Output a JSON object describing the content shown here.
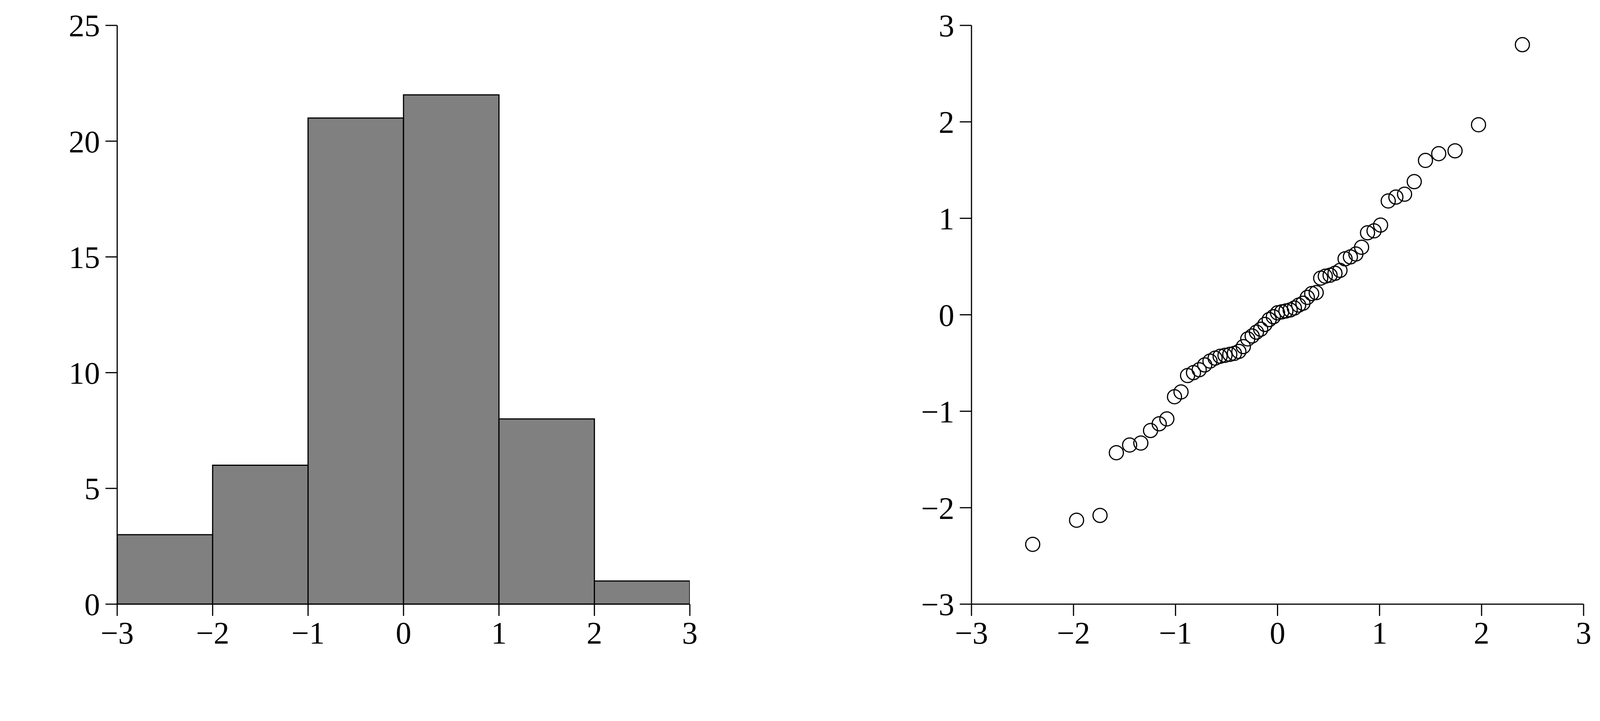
{
  "chart_data": [
    {
      "type": "histogram",
      "bins": [
        -3,
        -2,
        -1,
        0,
        1,
        2,
        3
      ],
      "counts": [
        3,
        6,
        21,
        22,
        8,
        1
      ],
      "color": "#808080",
      "xlim": [
        -3,
        3
      ],
      "ylim": [
        0,
        25
      ],
      "xticks": [
        {
          "value": -3,
          "label": "−3"
        },
        {
          "value": -2,
          "label": "−2"
        },
        {
          "value": -1,
          "label": "−1"
        },
        0,
        1,
        2,
        3
      ],
      "yticks": [
        0,
        5,
        10,
        15,
        20,
        25
      ],
      "grid": false
    },
    {
      "type": "scatter",
      "marker": "circle",
      "x": [
        -2.4,
        -1.97,
        -1.74,
        -1.58,
        -1.45,
        -1.34,
        -1.245,
        -1.16,
        -1.085,
        -1.01,
        -0.946,
        -0.882,
        -0.824,
        -0.768,
        -0.714,
        -0.662,
        -0.612,
        -0.563,
        -0.515,
        -0.468,
        -0.423,
        -0.379,
        -0.335,
        -0.292,
        -0.249,
        -0.207,
        -0.165,
        -0.124,
        -0.082,
        -0.041,
        0,
        0.041,
        0.082,
        0.124,
        0.165,
        0.207,
        0.249,
        0.292,
        0.335,
        0.379,
        0.423,
        0.468,
        0.515,
        0.563,
        0.612,
        0.662,
        0.714,
        0.768,
        0.824,
        0.882,
        0.946,
        1.01,
        1.085,
        1.16,
        1.245,
        1.34,
        1.45,
        1.58,
        1.74,
        1.97,
        2.4
      ],
      "y": [
        -2.38,
        -2.13,
        -2.08,
        -1.43,
        -1.35,
        -1.33,
        -1.2,
        -1.13,
        -1.08,
        -0.85,
        -0.8,
        -0.63,
        -0.6,
        -0.57,
        -0.52,
        -0.48,
        -0.45,
        -0.43,
        -0.42,
        -0.41,
        -0.4,
        -0.38,
        -0.33,
        -0.25,
        -0.22,
        -0.18,
        -0.15,
        -0.1,
        -0.05,
        -0.02,
        0.02,
        0.03,
        0.04,
        0.05,
        0.07,
        0.1,
        0.12,
        0.18,
        0.22,
        0.23,
        0.38,
        0.4,
        0.41,
        0.43,
        0.46,
        0.58,
        0.6,
        0.63,
        0.7,
        0.85,
        0.87,
        0.93,
        1.18,
        1.22,
        1.25,
        1.38,
        1.6,
        1.67,
        1.7,
        1.97,
        2.8
      ],
      "xlim": [
        -3,
        3
      ],
      "ylim": [
        -3,
        3
      ],
      "xticks": [
        {
          "value": -3,
          "label": "−3"
        },
        {
          "value": -2,
          "label": "−2"
        },
        {
          "value": -1,
          "label": "−1"
        },
        0,
        1,
        2,
        3
      ],
      "yticks": [
        {
          "value": -3,
          "label": "−3"
        },
        {
          "value": -2,
          "label": "−2"
        },
        {
          "value": -1,
          "label": "−1"
        },
        0,
        1,
        2,
        3
      ],
      "grid": false
    }
  ]
}
